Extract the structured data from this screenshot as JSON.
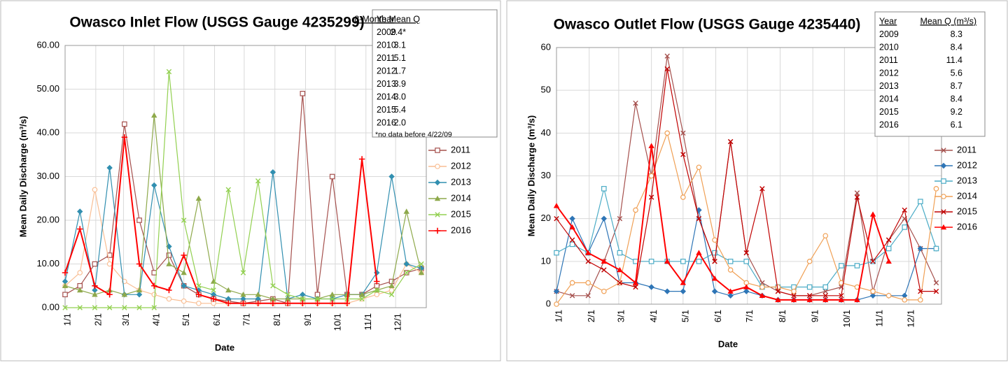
{
  "chart_data": [
    {
      "type": "line",
      "title": "Owasco Inlet Flow (USGS Gauge 4235299)",
      "xlabel": "Date",
      "ylabel": "Mean Daily Discharge (m³/s)",
      "x": [
        1,
        16,
        31,
        46,
        61,
        76,
        91,
        106,
        121,
        136,
        151,
        166,
        181,
        196,
        211,
        226,
        241,
        256,
        271,
        286,
        301,
        316,
        331,
        346,
        361
      ],
      "xlim": [
        1,
        366
      ],
      "xticks": [
        {
          "value": 1,
          "label": "1/1"
        },
        {
          "value": 32,
          "label": "2/1"
        },
        {
          "value": 60,
          "label": "3/1"
        },
        {
          "value": 91,
          "label": "4/1"
        },
        {
          "value": 121,
          "label": "5/1"
        },
        {
          "value": 152,
          "label": "6/1"
        },
        {
          "value": 182,
          "label": "7/1"
        },
        {
          "value": 213,
          "label": "8/1"
        },
        {
          "value": 244,
          "label": "9/1"
        },
        {
          "value": 274,
          "label": "10/1"
        },
        {
          "value": 305,
          "label": "11/1"
        },
        {
          "value": 335,
          "label": "12/1"
        }
      ],
      "ylim": [
        0,
        60
      ],
      "yticks": [
        {
          "value": 0,
          "label": "0.00"
        },
        {
          "value": 10,
          "label": "10.00"
        },
        {
          "value": 20,
          "label": "20.00"
        },
        {
          "value": 30,
          "label": "30.00"
        },
        {
          "value": 40,
          "label": "40.00"
        },
        {
          "value": 50,
          "label": "50.00"
        },
        {
          "value": 60,
          "label": "60.00"
        }
      ],
      "grid": true,
      "series": [
        {
          "name": "2011",
          "color": "#a5504d",
          "marker": "square",
          "values": [
            3,
            5,
            10,
            12,
            42,
            20,
            8,
            12,
            5,
            3,
            2,
            1.5,
            1,
            1.5,
            2,
            1,
            49,
            3,
            30,
            3,
            3,
            5,
            6,
            8,
            9
          ]
        },
        {
          "name": "2012",
          "color": "#f9be93",
          "marker": "circle",
          "values": [
            5,
            8,
            27,
            10,
            6,
            4,
            3,
            2,
            1.5,
            1,
            1,
            1,
            1,
            1,
            1,
            1,
            1,
            1,
            1,
            1,
            2,
            3,
            4,
            10,
            8
          ]
        },
        {
          "name": "2013",
          "color": "#318fb0",
          "marker": "diamond",
          "values": [
            6,
            22,
            4,
            32,
            3,
            3,
            28,
            14,
            5,
            4,
            3,
            2,
            2,
            2,
            31,
            2,
            3,
            2,
            2,
            3,
            3,
            8,
            30,
            10,
            9
          ]
        },
        {
          "name": "2014",
          "color": "#8ea94b",
          "marker": "triangle",
          "values": [
            5,
            4,
            3,
            4,
            3,
            4,
            44,
            10,
            8,
            25,
            6,
            4,
            3,
            3,
            2,
            2,
            2,
            2,
            3,
            3,
            3,
            4,
            5,
            22,
            8
          ]
        },
        {
          "name": "2015",
          "color": "#92d050",
          "marker": "x",
          "values": [
            0,
            0,
            0,
            0,
            0,
            0,
            0,
            54,
            20,
            5,
            4,
            27,
            8,
            29,
            5,
            3,
            2,
            2,
            2,
            2,
            2,
            4,
            3,
            8,
            10
          ]
        },
        {
          "name": "2016",
          "color": "#ff0000",
          "marker": "plus",
          "values": [
            8,
            18,
            5,
            3,
            39,
            10,
            5,
            4,
            12,
            3,
            2,
            1,
            1,
            1,
            1,
            1,
            1,
            1,
            1,
            1,
            34,
            6,
            null,
            null,
            null
          ]
        }
      ],
      "table": {
        "headers": [
          "Year",
          "8-Month Mean Q"
        ],
        "rows": [
          [
            "2009",
            "2.4*"
          ],
          [
            "2010",
            "3.1"
          ],
          [
            "2011",
            "5.1"
          ],
          [
            "2012",
            "1.7"
          ],
          [
            "2013",
            "3.9"
          ],
          [
            "2014",
            "3.0"
          ],
          [
            "2015",
            "5.4"
          ],
          [
            "2016",
            "2.0"
          ]
        ],
        "note": "*no data before 4/22/09"
      }
    },
    {
      "type": "line",
      "title": "Owasco Outlet Flow  (USGS Gauge 4235440)",
      "xlabel": "Date",
      "ylabel": "Mean Daily Discharge (m³/s)",
      "x": [
        1,
        16,
        31,
        46,
        61,
        76,
        91,
        106,
        121,
        136,
        151,
        166,
        181,
        196,
        211,
        226,
        241,
        256,
        271,
        286,
        301,
        316,
        331,
        346,
        361
      ],
      "xlim": [
        1,
        366
      ],
      "xticks": [
        {
          "value": 1,
          "label": "1/1"
        },
        {
          "value": 32,
          "label": "2/1"
        },
        {
          "value": 60,
          "label": "3/1"
        },
        {
          "value": 91,
          "label": "4/1"
        },
        {
          "value": 121,
          "label": "5/1"
        },
        {
          "value": 152,
          "label": "6/1"
        },
        {
          "value": 182,
          "label": "7/1"
        },
        {
          "value": 213,
          "label": "8/1"
        },
        {
          "value": 244,
          "label": "9/1"
        },
        {
          "value": 274,
          "label": "10/1"
        },
        {
          "value": 305,
          "label": "11/1"
        },
        {
          "value": 335,
          "label": "12/1"
        }
      ],
      "ylim": [
        0,
        60
      ],
      "yticks": [
        0,
        10,
        20,
        30,
        40,
        50,
        60
      ],
      "grid": true,
      "series": [
        {
          "name": "2011",
          "color": "#a5504d",
          "marker": "x",
          "values": [
            3,
            2,
            2,
            10,
            20,
            47,
            30,
            58,
            40,
            20,
            10,
            38,
            12,
            5,
            3,
            2,
            2,
            3,
            4,
            26,
            3,
            15,
            20,
            13,
            5
          ]
        },
        {
          "name": "2012",
          "color": "#2e75b6",
          "marker": "diamond",
          "values": [
            3,
            20,
            12,
            20,
            5,
            5,
            4,
            3,
            3,
            22,
            3,
            2,
            3,
            2,
            1,
            1,
            1,
            1,
            1,
            1,
            2,
            2,
            2,
            13,
            13
          ]
        },
        {
          "name": "2013",
          "color": "#4bacc6",
          "marker": "square",
          "values": [
            12,
            14,
            12,
            27,
            12,
            10,
            10,
            10,
            10,
            10,
            12,
            10,
            10,
            4,
            4,
            4,
            4,
            4,
            9,
            9,
            10,
            13,
            18,
            24,
            13
          ]
        },
        {
          "name": "2014",
          "color": "#f0a055",
          "marker": "circle",
          "values": [
            0,
            5,
            5,
            3,
            5,
            22,
            30,
            40,
            25,
            32,
            15,
            8,
            5,
            4,
            4,
            3,
            10,
            16,
            5,
            4,
            3,
            2,
            1,
            1,
            27
          ]
        },
        {
          "name": "2015",
          "color": "#c00000",
          "marker": "x",
          "values": [
            20,
            15,
            10,
            8,
            5,
            4,
            25,
            55,
            35,
            20,
            10,
            38,
            12,
            27,
            3,
            2,
            2,
            2,
            2,
            25,
            10,
            15,
            22,
            3,
            3
          ]
        },
        {
          "name": "2016",
          "color": "#ff0000",
          "marker": "triangle",
          "values": [
            23,
            18,
            12,
            10,
            8,
            5,
            37,
            10,
            5,
            12,
            6,
            3,
            4,
            2,
            1,
            1,
            1,
            1,
            1,
            1,
            21,
            10,
            null,
            null,
            null
          ]
        }
      ],
      "table": {
        "headers": [
          "Year",
          "Mean Q (m³/s)"
        ],
        "rows": [
          [
            "2009",
            "8.3"
          ],
          [
            "2010",
            "8.4"
          ],
          [
            "2011",
            "11.4"
          ],
          [
            "2012",
            "5.6"
          ],
          [
            "2013",
            "8.7"
          ],
          [
            "2014",
            "8.4"
          ],
          [
            "2015",
            "9.2"
          ],
          [
            "2016",
            "6.1"
          ]
        ]
      }
    }
  ]
}
